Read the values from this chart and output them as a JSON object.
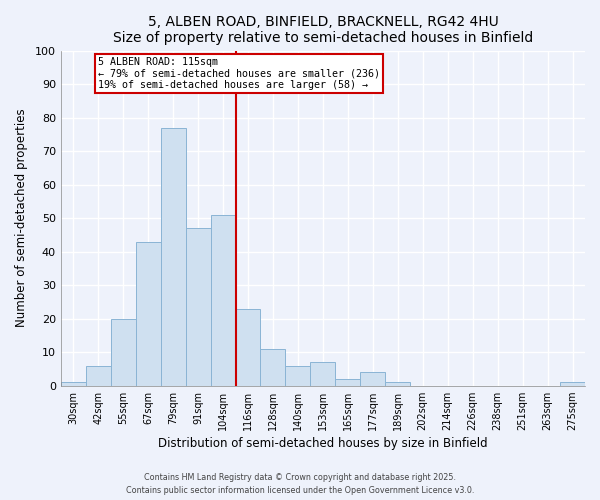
{
  "title": "5, ALBEN ROAD, BINFIELD, BRACKNELL, RG42 4HU",
  "subtitle": "Size of property relative to semi-detached houses in Binfield",
  "xlabel": "Distribution of semi-detached houses by size in Binfield",
  "ylabel": "Number of semi-detached properties",
  "bar_labels": [
    "30sqm",
    "42sqm",
    "55sqm",
    "67sqm",
    "79sqm",
    "91sqm",
    "104sqm",
    "116sqm",
    "128sqm",
    "140sqm",
    "153sqm",
    "165sqm",
    "177sqm",
    "189sqm",
    "202sqm",
    "214sqm",
    "226sqm",
    "238sqm",
    "251sqm",
    "263sqm",
    "275sqm"
  ],
  "bar_values": [
    1,
    6,
    20,
    43,
    77,
    47,
    51,
    23,
    11,
    6,
    7,
    2,
    4,
    1,
    0,
    0,
    0,
    0,
    0,
    0,
    1
  ],
  "bar_color": "#cfe0f0",
  "bar_edge_color": "#8ab4d4",
  "vline_color": "#cc0000",
  "annotation_title": "5 ALBEN ROAD: 115sqm",
  "annotation_line1": "← 79% of semi-detached houses are smaller (236)",
  "annotation_line2": "19% of semi-detached houses are larger (58) →",
  "annotation_box_color": "#ffffff",
  "annotation_box_edge": "#cc0000",
  "ylim": [
    0,
    100
  ],
  "yticks": [
    0,
    10,
    20,
    30,
    40,
    50,
    60,
    70,
    80,
    90,
    100
  ],
  "background_color": "#eef2fb",
  "grid_color": "#ffffff",
  "footer_line1": "Contains HM Land Registry data © Crown copyright and database right 2025.",
  "footer_line2": "Contains public sector information licensed under the Open Government Licence v3.0."
}
